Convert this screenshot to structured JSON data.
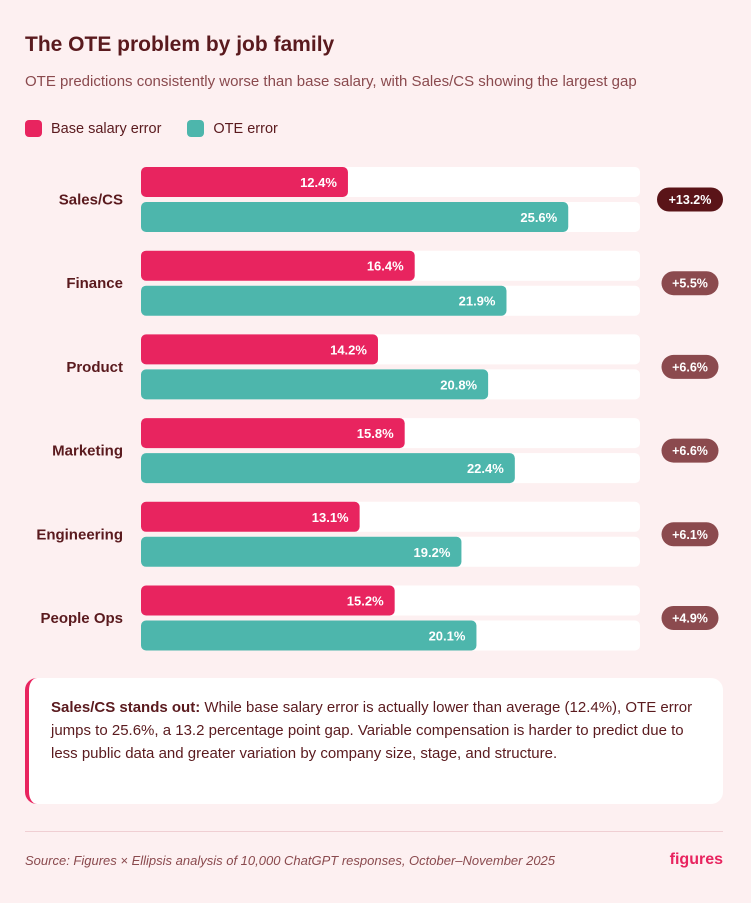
{
  "title": "The OTE problem by job family",
  "subtitle": "OTE predictions consistently worse than base salary, with Sales/CS showing the largest gap",
  "legend": {
    "base_label": "Base salary error",
    "ote_label": "OTE error"
  },
  "colors": {
    "base": "#e8245f",
    "ote": "#4db6ac",
    "track": "#ffffff",
    "badge_highlight": "#5a1418",
    "badge_default": "#8b4a4e"
  },
  "chart_data": {
    "type": "bar",
    "orientation": "horizontal",
    "categories": [
      "Sales/CS",
      "Finance",
      "Product",
      "Marketing",
      "Engineering",
      "People Ops"
    ],
    "series": [
      {
        "name": "Base salary error",
        "values": [
          12.4,
          16.4,
          14.2,
          15.8,
          13.1,
          15.2
        ],
        "labels": [
          "12.4%",
          "16.4%",
          "14.2%",
          "15.8%",
          "13.1%",
          "15.2%"
        ]
      },
      {
        "name": "OTE error",
        "values": [
          25.6,
          21.9,
          20.8,
          22.4,
          19.2,
          20.1
        ],
        "labels": [
          "25.6%",
          "21.9%",
          "20.8%",
          "22.4%",
          "19.2%",
          "20.1%"
        ]
      }
    ],
    "gaps": [
      "+13.2%",
      "+5.5%",
      "+6.6%",
      "+6.6%",
      "+6.1%",
      "+4.9%"
    ],
    "highlight_index": 0,
    "xlim": [
      0,
      30
    ],
    "title": "The OTE problem by job family",
    "xlabel": "",
    "ylabel": ""
  },
  "callout": {
    "lead": "Sales/CS stands out:",
    "body": " While base salary error is actually lower than average (12.4%), OTE error jumps to 25.6%, a 13.2 percentage point gap. Variable compensation is harder to predict due to less public data and greater variation by company size, stage, and structure."
  },
  "footer": {
    "source": "Source: Figures × Ellipsis analysis of 10,000 ChatGPT responses, October–November 2025",
    "brand": "figures"
  }
}
